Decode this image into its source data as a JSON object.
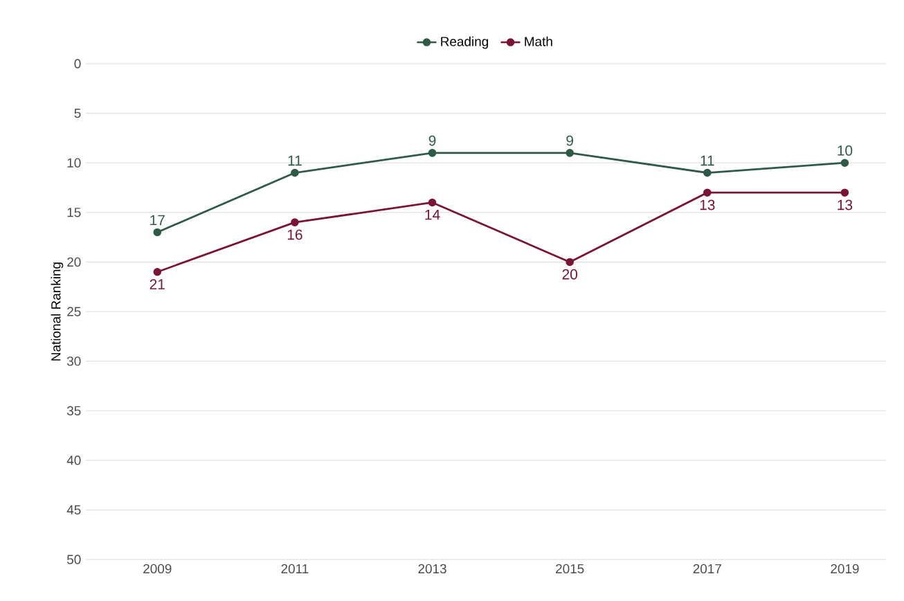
{
  "chart_data": {
    "type": "line",
    "ylabel": "National Ranking",
    "categories": [
      "2009",
      "2011",
      "2013",
      "2015",
      "2017",
      "2019"
    ],
    "series": [
      {
        "name": "Reading",
        "color": "#2f5a48",
        "values": [
          17,
          11,
          9,
          9,
          11,
          10
        ]
      },
      {
        "name": "Math",
        "color": "#7a1436",
        "values": [
          21,
          16,
          14,
          20,
          13,
          13
        ]
      }
    ],
    "ylim": [
      50,
      0
    ],
    "yticks": [
      0,
      5,
      10,
      15,
      20,
      25,
      30,
      35,
      40,
      45,
      50
    ],
    "grid": "y",
    "legend": "top",
    "marker": "circle",
    "data_labels": true
  }
}
